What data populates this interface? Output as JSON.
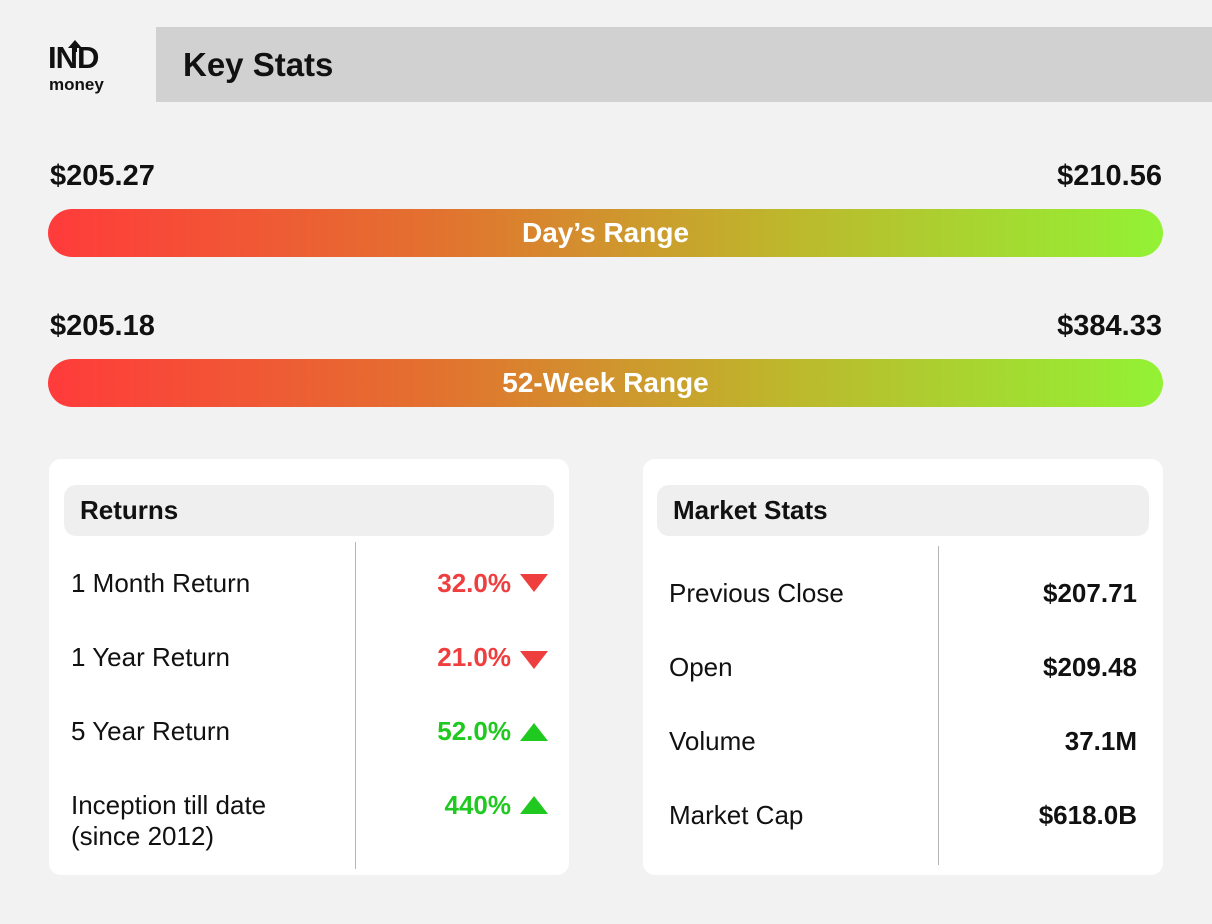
{
  "brand": {
    "logo_top": "IND",
    "logo_bottom": "money"
  },
  "header": {
    "title": "Key Stats"
  },
  "days_range": {
    "low": "$205.27",
    "high": "$210.56",
    "label": "Day’s Range"
  },
  "week52_range": {
    "low": "$205.18",
    "high": "$384.33",
    "label": "52-Week Range"
  },
  "returns": {
    "title": "Returns",
    "rows": [
      {
        "label": "1 Month Return",
        "value": "32.0%",
        "direction": "down"
      },
      {
        "label": "1 Year Return",
        "value": "21.0%",
        "direction": "down"
      },
      {
        "label": "5 Year Return",
        "value": "52.0%",
        "direction": "up"
      },
      {
        "label": "Inception till date",
        "label2": "(since 2012)",
        "value": "440%",
        "direction": "up"
      }
    ]
  },
  "market_stats": {
    "title": "Market Stats",
    "rows": [
      {
        "label": "Previous Close",
        "value": "$207.71"
      },
      {
        "label": "Open",
        "value": "$209.48"
      },
      {
        "label": "Volume",
        "value": "37.1M"
      },
      {
        "label": "Market Cap",
        "value": "$618.0B"
      }
    ]
  },
  "colors": {
    "negative": "#ef3e3e",
    "positive": "#1fc91f",
    "gradient_start": "#ff3b3b",
    "gradient_end": "#93f234",
    "header_bg": "#d1d1d1",
    "page_bg": "#f2f2f2"
  }
}
